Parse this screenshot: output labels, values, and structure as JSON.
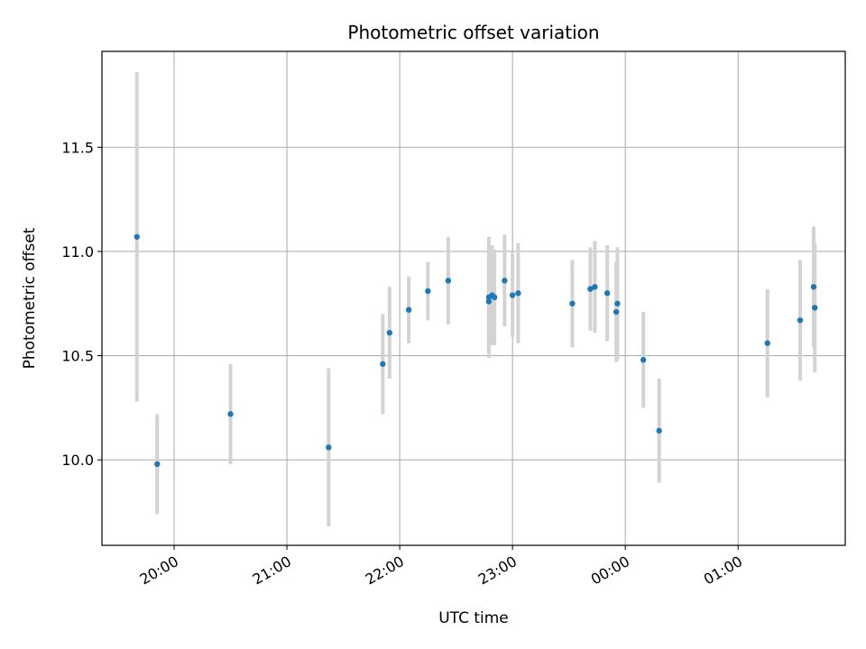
{
  "chart_data": {
    "type": "scatter",
    "title": "Photometric offset variation",
    "xlabel": "UTC time",
    "ylabel": "Photometric offset",
    "x_axis_type": "time",
    "x_unit": "hours since 00:00 (negative = previous evening)",
    "xlim": [
      -4.64,
      1.95
    ],
    "ylim": [
      9.59,
      11.96
    ],
    "grid": true,
    "x_ticks": [
      {
        "value": -4.0,
        "label": "20:00"
      },
      {
        "value": -3.0,
        "label": "21:00"
      },
      {
        "value": -2.0,
        "label": "22:00"
      },
      {
        "value": -1.0,
        "label": "23:00"
      },
      {
        "value": 0.0,
        "label": "00:00"
      },
      {
        "value": 1.0,
        "label": "01:00"
      }
    ],
    "y_ticks": [
      {
        "value": 10.0,
        "label": "10.0"
      },
      {
        "value": 10.5,
        "label": "10.5"
      },
      {
        "value": 11.0,
        "label": "11.0"
      },
      {
        "value": 11.5,
        "label": "11.5"
      }
    ],
    "point_color": "#1f77b4",
    "errorbar_color": "#d3d3d3",
    "points": [
      {
        "time": "19:40",
        "x": -4.33,
        "y": 11.07,
        "yerr": 0.79
      },
      {
        "time": "19:51",
        "x": -4.15,
        "y": 9.98,
        "yerr": 0.24
      },
      {
        "time": "20:30",
        "x": -3.5,
        "y": 10.22,
        "yerr": 0.24
      },
      {
        "time": "21:22",
        "x": -2.63,
        "y": 10.06,
        "yerr": 0.38
      },
      {
        "time": "21:51",
        "x": -2.15,
        "y": 10.46,
        "yerr": 0.24
      },
      {
        "time": "21:55",
        "x": -2.09,
        "y": 10.61,
        "yerr": 0.22
      },
      {
        "time": "22:05",
        "x": -1.92,
        "y": 10.72,
        "yerr": 0.16
      },
      {
        "time": "22:15",
        "x": -1.75,
        "y": 10.81,
        "yerr": 0.14
      },
      {
        "time": "22:26",
        "x": -1.57,
        "y": 10.86,
        "yerr": 0.21
      },
      {
        "time": "22:47",
        "x": -1.21,
        "y": 10.78,
        "yerr": 0.29
      },
      {
        "time": "22:47",
        "x": -1.21,
        "y": 10.76,
        "yerr": 0.27
      },
      {
        "time": "22:49",
        "x": -1.18,
        "y": 10.79,
        "yerr": 0.24
      },
      {
        "time": "22:51",
        "x": -1.16,
        "y": 10.78,
        "yerr": 0.23
      },
      {
        "time": "22:56",
        "x": -1.07,
        "y": 10.86,
        "yerr": 0.22
      },
      {
        "time": "22:59",
        "x": -1.0,
        "y": 10.79,
        "yerr": 0.2
      },
      {
        "time": "23:03",
        "x": -0.95,
        "y": 10.8,
        "yerr": 0.24
      },
      {
        "time": "23:32",
        "x": -0.47,
        "y": 10.75,
        "yerr": 0.21
      },
      {
        "time": "23:41",
        "x": -0.31,
        "y": 10.82,
        "yerr": 0.2
      },
      {
        "time": "23:43",
        "x": -0.27,
        "y": 10.83,
        "yerr": 0.22
      },
      {
        "time": "23:50",
        "x": -0.16,
        "y": 10.8,
        "yerr": 0.23
      },
      {
        "time": "23:55",
        "x": -0.08,
        "y": 10.71,
        "yerr": 0.24
      },
      {
        "time": "23:56",
        "x": -0.07,
        "y": 10.75,
        "yerr": 0.27
      },
      {
        "time": "00:09",
        "x": 0.16,
        "y": 10.48,
        "yerr": 0.23
      },
      {
        "time": "00:18",
        "x": 0.3,
        "y": 10.14,
        "yerr": 0.25
      },
      {
        "time": "01:16",
        "x": 1.26,
        "y": 10.56,
        "yerr": 0.26
      },
      {
        "time": "01:33",
        "x": 1.55,
        "y": 10.67,
        "yerr": 0.29
      },
      {
        "time": "01:40",
        "x": 1.67,
        "y": 10.83,
        "yerr": 0.29
      },
      {
        "time": "01:41",
        "x": 1.68,
        "y": 10.73,
        "yerr": 0.31
      }
    ]
  }
}
